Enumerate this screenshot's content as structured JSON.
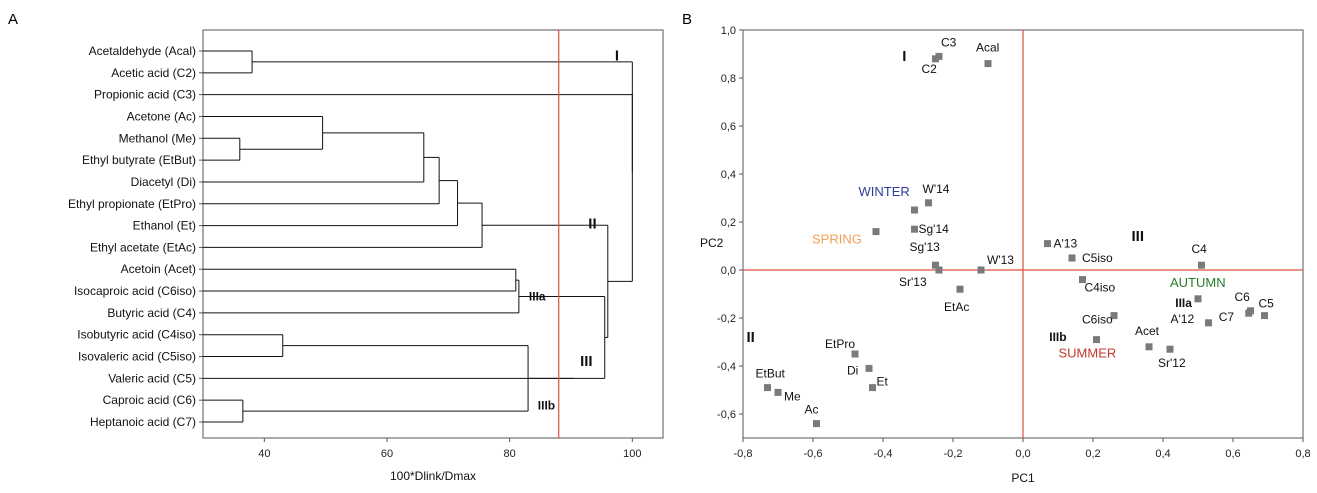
{
  "colors": {
    "cut_line": "#e0503a",
    "winter": "#2e3d9c",
    "spring": "#f0a055",
    "summer": "#c0392b",
    "autumn": "#2a7a2a",
    "point": "#7a7a7a",
    "tree": "#111111"
  },
  "chart_data": [
    {
      "type": "dendrogram",
      "panel": "A",
      "xlabel": "100*Dlink/Dmax",
      "xlim": [
        30,
        105
      ],
      "xticks": [
        40,
        60,
        80,
        100
      ],
      "cut_value": 88,
      "leaves": [
        "Acetaldehyde (Acal)",
        "Acetic acid (C2)",
        "Propionic acid (C3)",
        "Acetone (Ac)",
        "Methanol (Me)",
        "Ethyl butyrate (EtBut)",
        "Diacetyl (Di)",
        "Ethyl propionate (EtPro)",
        "Ethanol (Et)",
        "Ethyl acetate (EtAc)",
        "Acetoin (Acet)",
        "Isocaproic acid (C6iso)",
        "Butyric acid (C4)",
        "Isobutyric acid (C4iso)",
        "Isovaleric acid (C5iso)",
        "Valeric acid (C5)",
        "Caproic acid (C6)",
        "Heptanoic acid (C7)"
      ],
      "merges": [
        {
          "id": "n1",
          "a": "L0",
          "b": "L1",
          "height": 38
        },
        {
          "id": "n2",
          "a": "L4",
          "b": "L5",
          "height": 36
        },
        {
          "id": "n3",
          "a": "L3",
          "b": "n2",
          "height": 49.5
        },
        {
          "id": "n4",
          "a": "n3",
          "b": "L6",
          "height": 66
        },
        {
          "id": "n5",
          "a": "n4",
          "b": "L7",
          "height": 68.5
        },
        {
          "id": "n6",
          "a": "n5",
          "b": "L8",
          "height": 71.5
        },
        {
          "id": "n7",
          "a": "n6",
          "b": "L9",
          "height": 75.5
        },
        {
          "id": "n8",
          "a": "L10",
          "b": "L11",
          "height": 81
        },
        {
          "id": "n9",
          "a": "n8",
          "b": "L12",
          "height": 81.5
        },
        {
          "id": "n10",
          "a": "L13",
          "b": "L14",
          "height": 43
        },
        {
          "id": "n11",
          "a": "L16",
          "b": "L17",
          "height": 36.5
        },
        {
          "id": "n12",
          "a": "n10",
          "b": "n11",
          "height": 83
        },
        {
          "id": "n13",
          "a": "n12",
          "b": "L15",
          "height": 90.5
        },
        {
          "id": "n14",
          "a": "n9",
          "b": "n13",
          "height": 95.5
        },
        {
          "id": "n15",
          "a": "n7",
          "b": "n14",
          "height": 96
        },
        {
          "id": "n16",
          "a": "n1",
          "b": "n15",
          "height": 100
        },
        {
          "id": "n17",
          "a": "n16",
          "b": "L2",
          "height": 100
        }
      ],
      "cluster_labels": [
        {
          "text": "I",
          "x": 97.5,
          "leaf": 0.2
        },
        {
          "text": "II",
          "x": 93.5,
          "leaf": 7.9
        },
        {
          "text": "III",
          "x": 92.5,
          "leaf": 14.2
        },
        {
          "text": "IIIa",
          "x": 84.5,
          "leaf": 11.2
        },
        {
          "text": "IIIb",
          "x": 86,
          "leaf": 16.2
        }
      ]
    },
    {
      "type": "scatter",
      "panel": "B",
      "xlabel": "PC1",
      "ylabel": "PC2",
      "xlim": [
        -0.8,
        0.8
      ],
      "ylim": [
        -0.7,
        1.0
      ],
      "xticks": [
        "-0,8",
        "-0,6",
        "-0,4",
        "-0,2",
        "0,0",
        "0,2",
        "0,4",
        "0,6",
        "0,8"
      ],
      "xtick_values": [
        -0.8,
        -0.6,
        -0.4,
        -0.2,
        0,
        0.2,
        0.4,
        0.6,
        0.8
      ],
      "yticks": [
        "-0,6",
        "-0,4",
        "-0,2",
        "0,0",
        "0,2",
        "0,4",
        "0,6",
        "0,8",
        "1,0"
      ],
      "ytick_values": [
        -0.6,
        -0.4,
        -0.2,
        0,
        0.2,
        0.4,
        0.6,
        0.8,
        1.0
      ],
      "points": [
        {
          "label": "C3",
          "x": -0.24,
          "y": 0.89,
          "dx": 2,
          "dy": -10,
          "color": "tree"
        },
        {
          "label": "C2",
          "x": -0.25,
          "y": 0.88,
          "dx": -14,
          "dy": 14,
          "color": "tree"
        },
        {
          "label": "Acal",
          "x": -0.1,
          "y": 0.86,
          "dx": -12,
          "dy": -12,
          "color": "tree"
        },
        {
          "label": "W'14",
          "x": -0.27,
          "y": 0.28,
          "dx": -6,
          "dy": -10,
          "color": "winter"
        },
        {
          "label": "WINTER",
          "x": -0.31,
          "y": 0.25,
          "dx": -56,
          "dy": -14,
          "color": "winter"
        },
        {
          "label": "SPRING",
          "x": -0.42,
          "y": 0.16,
          "dx": -64,
          "dy": 12,
          "color": "spring"
        },
        {
          "label": "Sg'14",
          "x": -0.31,
          "y": 0.17,
          "dx": 4,
          "dy": 4,
          "color": "spring"
        },
        {
          "label": "Sg'13",
          "x": -0.25,
          "y": 0.02,
          "dx": -26,
          "dy": -14,
          "color": "spring"
        },
        {
          "label": "W'13",
          "x": -0.12,
          "y": 0.0,
          "dx": 6,
          "dy": -6,
          "color": "winter"
        },
        {
          "label": "Sr'13",
          "x": -0.24,
          "y": 0.0,
          "dx": -40,
          "dy": 16,
          "color": "summer"
        },
        {
          "label": "EtAc",
          "x": -0.18,
          "y": -0.08,
          "dx": -16,
          "dy": 22,
          "color": "tree"
        },
        {
          "label": "A'13",
          "x": 0.07,
          "y": 0.11,
          "dx": 6,
          "dy": 4,
          "color": "autumn"
        },
        {
          "label": "C5iso",
          "x": 0.14,
          "y": 0.05,
          "dx": 10,
          "dy": 4,
          "color": "tree"
        },
        {
          "label": "C4",
          "x": 0.51,
          "y": 0.02,
          "dx": -10,
          "dy": -12,
          "color": "tree"
        },
        {
          "label": "C4iso",
          "x": 0.17,
          "y": -0.04,
          "dx": 2,
          "dy": 12,
          "color": "tree"
        },
        {
          "label": "AUTUMN",
          "x": 0.5,
          "y": -0.12,
          "dx": -28,
          "dy": -12,
          "color": "autumn"
        },
        {
          "label": "A'12",
          "x": 0.53,
          "y": -0.22,
          "dx": -38,
          "dy": 0,
          "color": "autumn"
        },
        {
          "label": "C6",
          "x": 0.65,
          "y": -0.17,
          "dx": -16,
          "dy": -10,
          "color": "tree"
        },
        {
          "label": "C7",
          "x": 0.645,
          "y": -0.18,
          "dx": -30,
          "dy": 8,
          "color": "tree"
        },
        {
          "label": "C5",
          "x": 0.69,
          "y": -0.19,
          "dx": -6,
          "dy": -8,
          "color": "tree"
        },
        {
          "label": "C6iso",
          "x": 0.26,
          "y": -0.19,
          "dx": -32,
          "dy": 8,
          "color": "tree"
        },
        {
          "label": "Acet",
          "x": 0.36,
          "y": -0.32,
          "dx": -14,
          "dy": -12,
          "color": "tree"
        },
        {
          "label": "Sr'12",
          "x": 0.42,
          "y": -0.33,
          "dx": -12,
          "dy": 18,
          "color": "summer"
        },
        {
          "label": "SUMMER",
          "x": 0.21,
          "y": -0.29,
          "dx": -38,
          "dy": 18,
          "color": "summer",
          "hidden_marker": false
        },
        {
          "label": "EtPro",
          "x": -0.48,
          "y": -0.35,
          "dx": -30,
          "dy": -6,
          "color": "tree"
        },
        {
          "label": "Di",
          "x": -0.44,
          "y": -0.41,
          "dx": -22,
          "dy": 6,
          "color": "tree"
        },
        {
          "label": "Et",
          "x": -0.43,
          "y": -0.49,
          "dx": 4,
          "dy": -2,
          "color": "tree"
        },
        {
          "label": "EtBut",
          "x": -0.73,
          "y": -0.49,
          "dx": -12,
          "dy": -10,
          "color": "tree"
        },
        {
          "label": "Me",
          "x": -0.7,
          "y": -0.51,
          "dx": 6,
          "dy": 8,
          "color": "tree"
        },
        {
          "label": "Ac",
          "x": -0.59,
          "y": -0.64,
          "dx": -12,
          "dy": -10,
          "color": "tree"
        }
      ],
      "group_labels": [
        {
          "text": "I",
          "x": -0.345,
          "y": 0.87,
          "size": "large"
        },
        {
          "text": "II",
          "x": -0.79,
          "y": -0.3,
          "size": "large"
        },
        {
          "text": "III",
          "x": 0.31,
          "y": 0.12,
          "size": "large"
        },
        {
          "text": "IIIa",
          "x": 0.435,
          "y": -0.155,
          "size": "small"
        },
        {
          "text": "IIIb",
          "x": 0.075,
          "y": -0.295,
          "size": "small"
        }
      ]
    }
  ],
  "panels": {
    "a_letter": "A",
    "b_letter": "B"
  }
}
